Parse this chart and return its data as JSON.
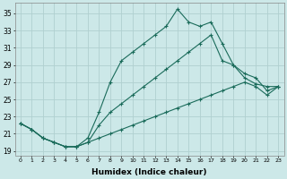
{
  "xlabel": "Humidex (Indice chaleur)",
  "ylabel": "",
  "xlim": [
    -0.5,
    23.5
  ],
  "ylim": [
    18.5,
    36.2
  ],
  "yticks": [
    19,
    21,
    23,
    25,
    27,
    29,
    31,
    33,
    35
  ],
  "xticks": [
    0,
    1,
    2,
    3,
    4,
    5,
    6,
    7,
    8,
    9,
    10,
    11,
    12,
    13,
    14,
    15,
    16,
    17,
    18,
    19,
    20,
    21,
    22,
    23
  ],
  "bg_color": "#cce8e8",
  "grid_color": "#b0d0d0",
  "line_color": "#1a6b5a",
  "hours": [
    0,
    1,
    2,
    3,
    4,
    5,
    6,
    7,
    8,
    9,
    10,
    11,
    12,
    13,
    14,
    15,
    16,
    17,
    18,
    19,
    20,
    21,
    22,
    23
  ],
  "line_max": [
    22.2,
    21.5,
    20.5,
    20.0,
    19.5,
    19.5,
    20.5,
    23.5,
    27.0,
    29.5,
    30.5,
    31.5,
    32.5,
    33.5,
    35.5,
    34.0,
    33.5,
    34.0,
    31.5,
    29.0,
    27.5,
    26.8,
    26.5,
    26.5
  ],
  "line_mid": [
    22.2,
    21.5,
    20.5,
    20.0,
    19.5,
    19.5,
    20.0,
    22.0,
    23.5,
    24.5,
    25.5,
    26.5,
    27.5,
    28.5,
    29.5,
    30.5,
    31.5,
    32.5,
    29.5,
    29.0,
    28.0,
    27.5,
    26.0,
    26.5
  ],
  "line_min": [
    22.2,
    21.5,
    20.5,
    20.0,
    19.5,
    19.5,
    20.0,
    20.5,
    21.0,
    21.5,
    22.0,
    22.5,
    23.0,
    23.5,
    24.0,
    24.5,
    25.0,
    25.5,
    26.0,
    26.5,
    27.0,
    26.5,
    25.5,
    26.5
  ]
}
